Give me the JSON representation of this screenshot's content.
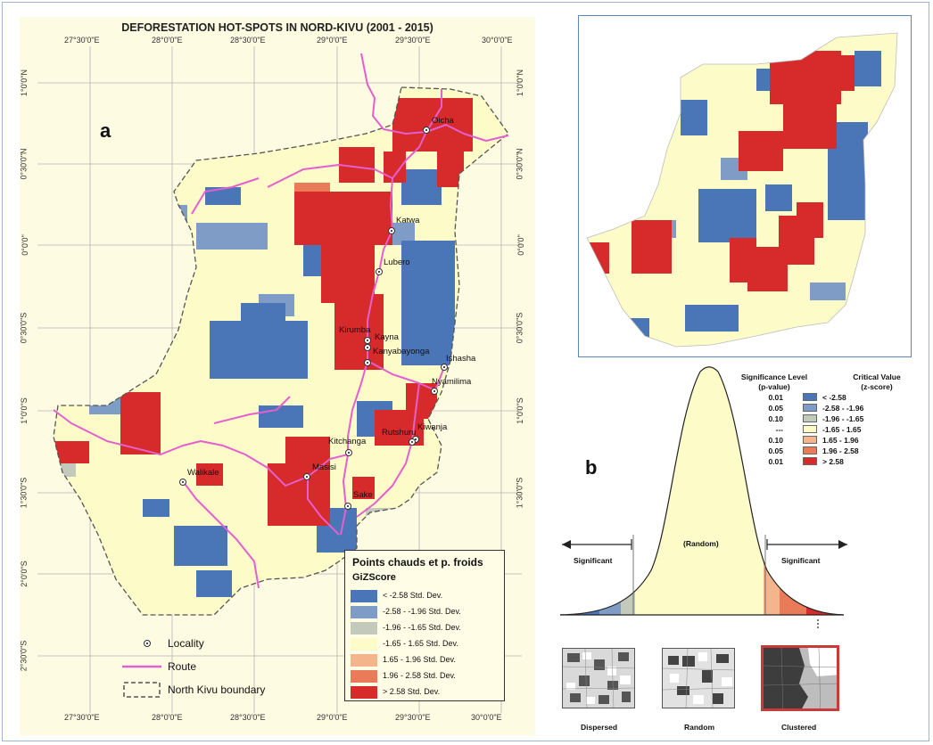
{
  "map": {
    "title": "DEFORESTATION HOT-SPOTS IN NORD-KIVU (2001 - 2015)",
    "panel_a_label": "a",
    "panel_b_label": "b",
    "lon_ticks": [
      "27°30'0\"E",
      "28°0'0\"E",
      "28°30'0\"E",
      "29°0'0\"E",
      "29°30'0\"E",
      "30°0'0\"E"
    ],
    "lat_ticks": [
      "1°0'0\"N",
      "0°30'0\"N",
      "0°0'0\"",
      "0°30'0\"S",
      "1°0'0\"S",
      "1°30'0\"S",
      "2°0'0\"S",
      "2°30'0\"S"
    ],
    "localities": [
      "Oicha",
      "Katwa",
      "Lubero",
      "Kirumba",
      "Kayna",
      "Kanyabayonga",
      "Ishasha",
      "Nyamilima",
      "Kiwanja",
      "Rutshuru",
      "Kitchanga",
      "Walikale",
      "Masisi",
      "Sake"
    ]
  },
  "legend": {
    "title": "Points chauds et p. froids",
    "subtitle": "GiZScore",
    "classes": [
      {
        "label": "< -2.58 Std. Dev.",
        "color": "#4a76b8"
      },
      {
        "label": "-2.58 - -1.96 Std. Dev.",
        "color": "#7f9cc6"
      },
      {
        "label": "-1.96 - -1.65 Std. Dev.",
        "color": "#c3c9bb"
      },
      {
        "label": "-1.65 - 1.65 Std. Dev.",
        "color": "#fdfbc8"
      },
      {
        "label": "1.65 - 1.96 Std. Dev.",
        "color": "#f4b58c"
      },
      {
        "label": "1.96 - 2.58 Std. Dev.",
        "color": "#ea7b59"
      },
      {
        "label": "> 2.58 Std. Dev.",
        "color": "#d72a2a"
      }
    ]
  },
  "map_key": {
    "locality": "Locality",
    "route": "Route",
    "boundary": "North Kivu boundary"
  },
  "significance": {
    "level_header": "Significance Level\n(p-value)",
    "critical_header": "Critical Value\n(z-score)",
    "rows": [
      {
        "p": "0.01",
        "z": "< -2.58",
        "color": "#4a76b8"
      },
      {
        "p": "0.05",
        "z": "-2.58 - -1.96",
        "color": "#7f9cc6"
      },
      {
        "p": "0.10",
        "z": "-1.96 - -1.65",
        "color": "#c3c9bb"
      },
      {
        "p": "---",
        "z": "-1.65 - 1.65",
        "color": "#fdfbc8"
      },
      {
        "p": "0.10",
        "z": "1.65 - 1.96",
        "color": "#f4b58c"
      },
      {
        "p": "0.05",
        "z": "1.96 - 2.58",
        "color": "#ea7b59"
      },
      {
        "p": "0.01",
        "z": "> 2.58",
        "color": "#d72a2a"
      }
    ],
    "random_label": "(Random)",
    "significant_left": "Significant",
    "significant_right": "Significant",
    "patterns": [
      "Dispersed",
      "Random",
      "Clustered"
    ]
  }
}
